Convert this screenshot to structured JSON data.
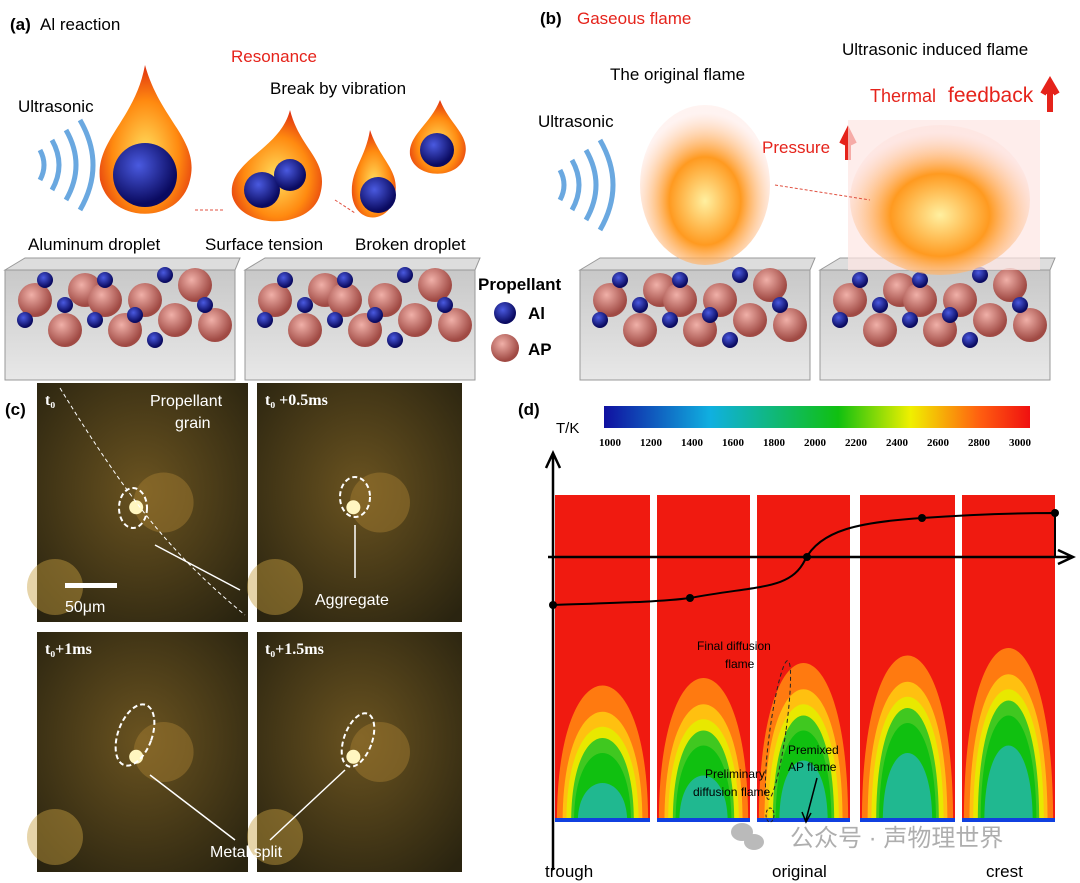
{
  "panel_a": {
    "label": "(a)",
    "title": "Al reaction",
    "resonance": "Resonance",
    "break_by_vibration": "Break by vibration",
    "ultrasonic": "Ultrasonic",
    "aluminum_droplet": "Aluminum  droplet",
    "surface_tension": "Surface tension",
    "broken_droplet": "Broken droplet"
  },
  "legend": {
    "title": "Propellant",
    "items": [
      {
        "label": "Al",
        "color": "#1a1a8c"
      },
      {
        "label": "AP",
        "color": "#c9706a"
      }
    ]
  },
  "panel_b": {
    "label": "(b)",
    "title": "Gaseous flame",
    "original_flame": "The  original flame",
    "induced_flame": "Ultrasonic induced flame",
    "thermal": "Thermal",
    "feedback": "feedback",
    "pressure": "Pressure",
    "ultrasonic": "Ultrasonic"
  },
  "panel_c": {
    "label": "(c)",
    "frames": [
      {
        "time": "t₀"
      },
      {
        "time": "t₀ +0.5ms"
      },
      {
        "time": "t₀+1ms"
      },
      {
        "time": "t₀+1.5ms"
      }
    ],
    "propellant_grain_1": "Propellant",
    "propellant_grain_2": "grain",
    "scale_bar": "50μm",
    "aggregate": "Aggregate",
    "metal_split": "Metal split"
  },
  "panel_d": {
    "label": "(d)",
    "colorbar_label": "T/K",
    "colorbar_ticks": [
      "1000",
      "1200",
      "1400",
      "1600",
      "1800",
      "2000",
      "2200",
      "2400",
      "2600",
      "2800",
      "3000"
    ],
    "final_diffusion_1": "Final diffusion",
    "final_diffusion_2": "flame",
    "preliminary_1": "Preliminary",
    "preliminary_2": "diffusion flame",
    "premixed_1": "Premixed",
    "premixed_2": "AP flame",
    "x_labels": [
      "trough",
      "original",
      "crest"
    ]
  },
  "watermark": "公众号 · 声物理世界"
}
